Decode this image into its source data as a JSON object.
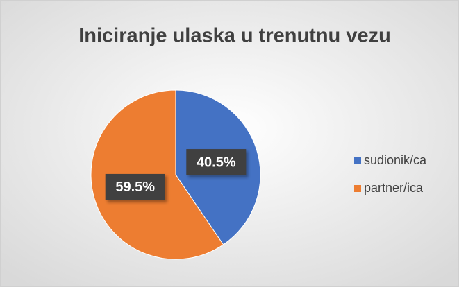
{
  "chart_data": {
    "type": "pie",
    "title": "Iniciranje ulaska u trenutnu vezu",
    "categories": [
      "sudionik/ca",
      "partner/ica"
    ],
    "values": [
      40.5,
      59.5
    ],
    "value_labels": [
      "40.5%",
      "59.5%"
    ],
    "colors": [
      "#4472c4",
      "#ed7d31"
    ],
    "legend": "right"
  }
}
